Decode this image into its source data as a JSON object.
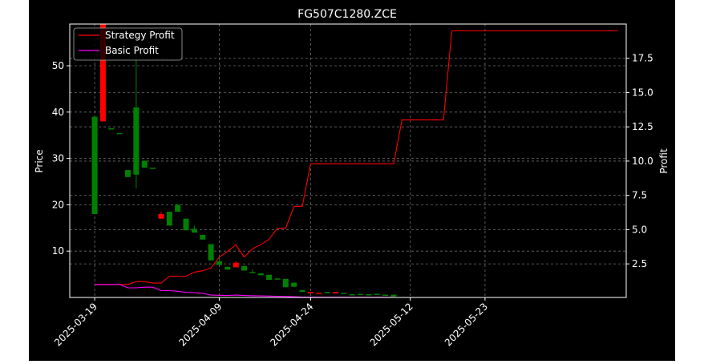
{
  "chart_data": {
    "type": "candlestick+line",
    "title": "FG507C1280.ZCE",
    "left_axis": {
      "label": "Price",
      "ylim": [
        0,
        59
      ],
      "ticks": [
        10,
        20,
        30,
        40,
        50
      ]
    },
    "right_axis": {
      "label": "Profit",
      "ylim": [
        0.05,
        20.0
      ],
      "ticks": [
        2.5,
        5.0,
        7.5,
        10.0,
        12.5,
        15.0,
        17.5
      ]
    },
    "x_axis": {
      "xlim": [
        -3,
        64
      ],
      "ticks": [
        0,
        15,
        26,
        38,
        47
      ],
      "tick_labels": [
        "2025-03-19",
        "2025-04-09",
        "2025-04-24",
        "2025-05-12",
        "2025-05-23"
      ]
    },
    "legend": {
      "placement": "top-left",
      "entries": [
        {
          "name": "Strategy Profit",
          "color": "#ff0000"
        },
        {
          "name": "Basic Profit",
          "color": "#ff00ff"
        }
      ]
    },
    "grid": true,
    "candles": [
      {
        "x": 0,
        "open": 18.0,
        "close": 39.0,
        "high": 39.0,
        "low": 18.0
      },
      {
        "x": 1,
        "open": 59.0,
        "close": 38.0,
        "high": 59.0,
        "low": 38.0
      },
      {
        "x": 2,
        "open": 36.5,
        "close": 36.5,
        "high": 36.5,
        "low": 36.5
      },
      {
        "x": 3,
        "open": 35.5,
        "close": 35.5,
        "high": 35.5,
        "low": 35.5
      },
      {
        "x": 4,
        "open": 26.0,
        "close": 27.5,
        "high": 27.5,
        "low": 26.0
      },
      {
        "x": 5,
        "open": 26.5,
        "close": 41.0,
        "high": 54.0,
        "low": 23.5
      },
      {
        "x": 6,
        "open": 28.0,
        "close": 29.5,
        "high": 29.5,
        "low": 28.0
      },
      {
        "x": 7,
        "open": 28.0,
        "close": 28.0,
        "high": 28.0,
        "low": 28.0
      },
      {
        "x": 8,
        "open": 18.0,
        "close": 17.0,
        "high": 18.5,
        "low": 17.0
      },
      {
        "x": 9,
        "open": 15.5,
        "close": 18.5,
        "high": 18.5,
        "low": 15.5
      },
      {
        "x": 10,
        "open": 18.5,
        "close": 20.0,
        "high": 20.0,
        "low": 18.5
      },
      {
        "x": 11,
        "open": 14.5,
        "close": 17.0,
        "high": 17.0,
        "low": 14.5
      },
      {
        "x": 12,
        "open": 14.0,
        "close": 14.8,
        "high": 15.5,
        "low": 14.0
      },
      {
        "x": 13,
        "open": 12.5,
        "close": 13.5,
        "high": 13.5,
        "low": 12.5
      },
      {
        "x": 14,
        "open": 8.0,
        "close": 11.5,
        "high": 11.5,
        "low": 8.0
      },
      {
        "x": 15,
        "open": 7.0,
        "close": 7.8,
        "high": 9.0,
        "low": 7.0
      },
      {
        "x": 16,
        "open": 6.0,
        "close": 6.6,
        "high": 6.6,
        "low": 6.0
      },
      {
        "x": 17,
        "open": 7.5,
        "close": 6.5,
        "high": 7.8,
        "low": 6.5
      },
      {
        "x": 18,
        "open": 5.8,
        "close": 6.8,
        "high": 6.8,
        "low": 5.8
      },
      {
        "x": 19,
        "open": 5.5,
        "close": 5.5,
        "high": 6.0,
        "low": 5.5
      },
      {
        "x": 20,
        "open": 4.8,
        "close": 5.2,
        "high": 5.3,
        "low": 4.8
      },
      {
        "x": 21,
        "open": 3.8,
        "close": 4.9,
        "high": 4.9,
        "low": 3.8
      },
      {
        "x": 22,
        "open": 4.1,
        "close": 4.1,
        "high": 4.1,
        "low": 4.1
      },
      {
        "x": 23,
        "open": 2.2,
        "close": 4.0,
        "high": 4.0,
        "low": 2.2
      },
      {
        "x": 24,
        "open": 2.3,
        "close": 3.2,
        "high": 3.2,
        "low": 2.3
      },
      {
        "x": 25,
        "open": 1.2,
        "close": 1.6,
        "high": 1.6,
        "low": 1.2
      },
      {
        "x": 26,
        "open": 1.2,
        "close": 0.9,
        "high": 1.2,
        "low": 0.9
      },
      {
        "x": 27,
        "open": 1.0,
        "close": 0.9,
        "high": 1.0,
        "low": 0.9
      },
      {
        "x": 28,
        "open": 1.2,
        "close": 1.2,
        "high": 1.2,
        "low": 1.2
      },
      {
        "x": 29,
        "open": 1.2,
        "close": 0.9,
        "high": 1.2,
        "low": 0.9
      },
      {
        "x": 30,
        "open": 1.0,
        "close": 1.0,
        "high": 1.0,
        "low": 1.0
      },
      {
        "x": 31,
        "open": 0.7,
        "close": 0.7,
        "high": 0.7,
        "low": 0.7
      },
      {
        "x": 32,
        "open": 0.8,
        "close": 0.8,
        "high": 0.8,
        "low": 0.8
      },
      {
        "x": 33,
        "open": 0.7,
        "close": 0.7,
        "high": 0.7,
        "low": 0.7
      },
      {
        "x": 34,
        "open": 0.8,
        "close": 0.8,
        "high": 0.8,
        "low": 0.8
      },
      {
        "x": 35,
        "open": 0.4,
        "close": 0.6,
        "high": 0.6,
        "low": 0.4
      },
      {
        "x": 36,
        "open": 0.2,
        "close": 0.6,
        "high": 0.6,
        "low": 0.2
      }
    ],
    "series": [
      {
        "name": "Strategy Profit",
        "color": "#ff0000",
        "x": [
          0,
          1,
          2,
          3,
          4,
          5,
          6,
          7,
          8,
          9,
          10,
          11,
          12,
          13,
          14,
          15,
          16,
          17,
          18,
          19,
          20,
          21,
          22,
          23,
          24,
          25,
          26,
          27,
          28,
          29,
          30,
          31,
          32,
          33,
          34,
          35,
          36,
          37,
          38,
          39,
          40,
          41,
          42,
          43,
          44,
          45,
          46,
          47,
          48,
          49,
          50,
          51,
          52,
          53,
          54,
          55,
          56,
          57,
          58,
          59,
          60,
          61,
          62,
          63
        ],
        "values": [
          1.0,
          1.0,
          1.0,
          1.0,
          1.0,
          1.2,
          1.2,
          1.1,
          1.1,
          1.6,
          1.6,
          1.6,
          1.9,
          2.0,
          2.2,
          3.0,
          3.4,
          3.9,
          3.0,
          3.6,
          3.9,
          4.3,
          5.1,
          5.1,
          6.7,
          6.7,
          9.8,
          9.8,
          9.8,
          9.8,
          9.8,
          9.8,
          9.8,
          9.8,
          9.8,
          9.8,
          9.8,
          13.0,
          13.0,
          13.0,
          13.0,
          13.0,
          13.0,
          19.5,
          19.5,
          19.5,
          19.5,
          19.5,
          19.5,
          19.5,
          19.5,
          19.5,
          19.5,
          19.5,
          19.5,
          19.5,
          19.5,
          19.5,
          19.5,
          19.5,
          19.5,
          19.5,
          19.5,
          19.5
        ]
      },
      {
        "name": "Basic Profit",
        "color": "#ff00ff",
        "x": [
          0,
          1,
          2,
          3,
          4,
          5,
          6,
          7,
          8,
          9,
          10,
          11,
          12,
          13,
          14,
          15,
          16,
          17,
          18,
          19,
          20,
          21,
          22,
          23,
          24,
          25,
          26,
          27,
          28,
          29,
          30,
          31,
          32,
          33,
          34,
          35,
          36
        ],
        "values": [
          1.0,
          1.0,
          1.0,
          1.0,
          0.75,
          0.75,
          0.8,
          0.8,
          0.55,
          0.55,
          0.5,
          0.42,
          0.4,
          0.36,
          0.22,
          0.21,
          0.19,
          0.22,
          0.19,
          0.17,
          0.16,
          0.15,
          0.13,
          0.12,
          0.1,
          0.08,
          0.08,
          0.07,
          0.07,
          0.07,
          0.07,
          0.06,
          0.06,
          0.06,
          0.06,
          0.06,
          0.06
        ]
      }
    ]
  }
}
